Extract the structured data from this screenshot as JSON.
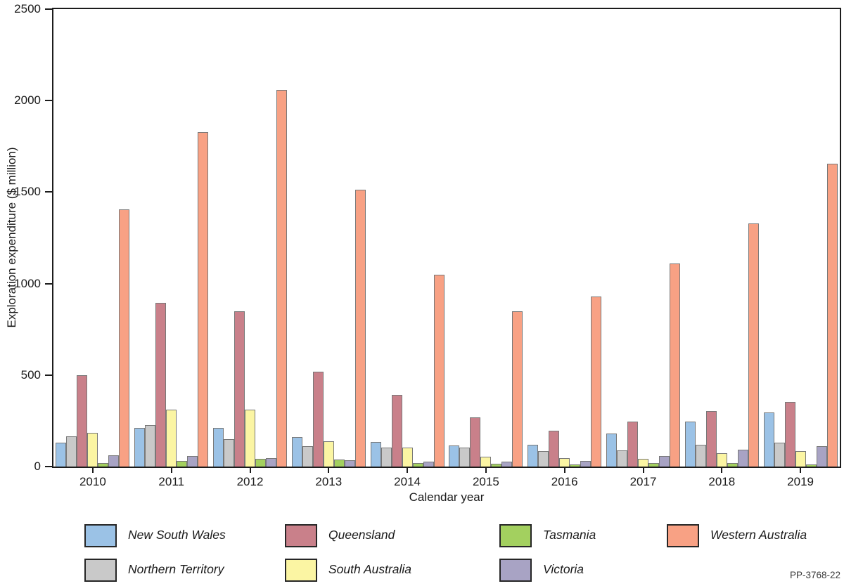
{
  "figure_code": "PP-3768-22",
  "chart_data": {
    "type": "bar",
    "title": "",
    "xlabel": "Calendar year",
    "ylabel": "Exploration expenditure ($ million)",
    "ylim": [
      0,
      2500
    ],
    "yticks": [
      0,
      500,
      1000,
      1500,
      2000,
      2500
    ],
    "grid": false,
    "legend_position": "bottom",
    "legend_style": "italic",
    "categories": [
      "2010",
      "2011",
      "2012",
      "2013",
      "2014",
      "2015",
      "2016",
      "2017",
      "2018",
      "2019"
    ],
    "series": [
      {
        "name": "New South Wales",
        "color": "#9BC2E6",
        "values": [
          130,
          210,
          210,
          160,
          135,
          115,
          120,
          180,
          245,
          295
        ]
      },
      {
        "name": "Northern Territory",
        "color": "#C9C9C9",
        "values": [
          165,
          225,
          150,
          113,
          105,
          105,
          85,
          90,
          120,
          132
        ]
      },
      {
        "name": "Queensland",
        "color": "#C9808A",
        "values": [
          500,
          895,
          850,
          520,
          390,
          270,
          195,
          245,
          305,
          355
        ]
      },
      {
        "name": "South Australia",
        "color": "#FBF5A3",
        "values": [
          185,
          312,
          310,
          140,
          105,
          55,
          48,
          42,
          75,
          85
        ]
      },
      {
        "name": "Tasmania",
        "color": "#A3D05F",
        "values": [
          19,
          29,
          41,
          38,
          19,
          14,
          12,
          18,
          18,
          13
        ]
      },
      {
        "name": "Victoria",
        "color": "#A8A3C4",
        "values": [
          62,
          56,
          45,
          34,
          26,
          27,
          32,
          56,
          92,
          113
        ]
      },
      {
        "name": "Western Australia",
        "color": "#F8A184",
        "values": [
          1405,
          1830,
          2058,
          1515,
          1048,
          848,
          930,
          1110,
          1327,
          1657
        ]
      }
    ],
    "legend_rows": [
      [
        "New South Wales",
        "Queensland",
        "Tasmania",
        "Western Australia"
      ],
      [
        "Northern Territory",
        "South Australia",
        "Victoria"
      ]
    ]
  }
}
